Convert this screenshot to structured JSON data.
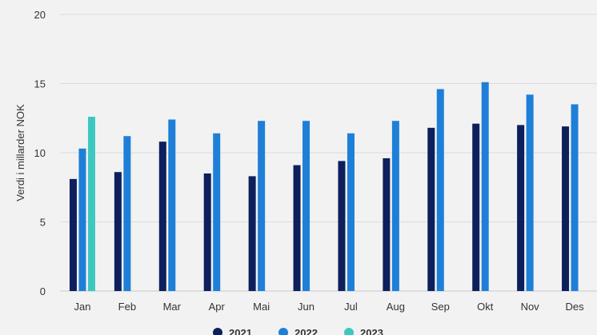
{
  "chart_data": {
    "type": "bar",
    "ylabel": "Verdi i millarder NOK",
    "xlabel": "",
    "ylim": [
      0,
      20
    ],
    "yticks": [
      0,
      5,
      10,
      15,
      20
    ],
    "grid": true,
    "legend_position": "bottom",
    "categories": [
      "Jan",
      "Feb",
      "Mar",
      "Apr",
      "Mai",
      "Jun",
      "Jul",
      "Aug",
      "Sep",
      "Okt",
      "Nov",
      "Des"
    ],
    "series": [
      {
        "name": "2021",
        "color": "#0d1f5c",
        "values": [
          8.1,
          8.6,
          10.8,
          8.5,
          8.3,
          9.1,
          9.4,
          9.6,
          11.8,
          12.1,
          12.0,
          11.9
        ]
      },
      {
        "name": "2022",
        "color": "#1e7fd8",
        "values": [
          10.3,
          11.2,
          12.4,
          11.4,
          12.3,
          12.3,
          11.4,
          12.3,
          14.6,
          15.1,
          14.2,
          13.5
        ]
      },
      {
        "name": "2023",
        "color": "#3cc8c0",
        "values": [
          12.6,
          null,
          null,
          null,
          null,
          null,
          null,
          null,
          null,
          null,
          null,
          null
        ]
      }
    ]
  }
}
